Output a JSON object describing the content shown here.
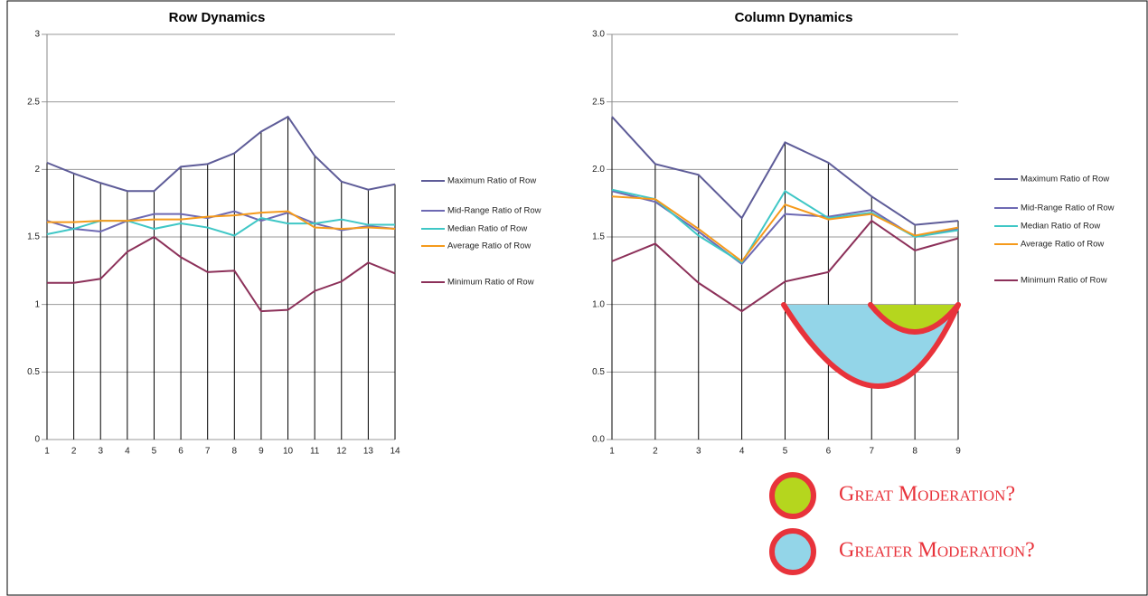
{
  "chart_data": [
    {
      "type": "line",
      "title": "Row Dynamics",
      "x": [
        1,
        2,
        3,
        4,
        5,
        6,
        7,
        8,
        9,
        10,
        11,
        12,
        13,
        14
      ],
      "xlim": [
        1,
        14
      ],
      "ylim": [
        0,
        3
      ],
      "yticks": [
        0,
        0.5,
        1,
        1.5,
        2,
        2.5,
        3
      ],
      "grid": true,
      "drop_lines": true,
      "series": [
        {
          "name": "Maximum Ratio of Row",
          "color": "#5e5c98",
          "values": [
            2.05,
            1.97,
            1.9,
            1.84,
            1.84,
            2.02,
            2.04,
            2.12,
            2.28,
            2.39,
            2.1,
            1.91,
            1.85,
            1.89
          ]
        },
        {
          "name": "Mid-Range Ratio of Row",
          "color": "#6d69b3",
          "values": [
            1.62,
            1.56,
            1.54,
            1.62,
            1.67,
            1.67,
            1.64,
            1.69,
            1.62,
            1.68,
            1.6,
            1.55,
            1.58,
            1.56
          ]
        },
        {
          "name": "Median Ratio of Row",
          "color": "#3fc7c6",
          "values": [
            1.52,
            1.56,
            1.62,
            1.62,
            1.56,
            1.6,
            1.57,
            1.51,
            1.64,
            1.6,
            1.6,
            1.63,
            1.59,
            1.59
          ]
        },
        {
          "name": "Average Ratio of Row",
          "color": "#f59a1b",
          "values": [
            1.61,
            1.61,
            1.62,
            1.62,
            1.63,
            1.63,
            1.65,
            1.66,
            1.68,
            1.69,
            1.57,
            1.56,
            1.57,
            1.56
          ]
        },
        {
          "name": "Minimum Ratio of Row",
          "color": "#8c3059",
          "values": [
            1.16,
            1.16,
            1.19,
            1.39,
            1.5,
            1.35,
            1.24,
            1.25,
            0.95,
            0.96,
            1.1,
            1.17,
            1.31,
            1.23
          ]
        }
      ]
    },
    {
      "type": "line",
      "title": "Column Dynamics",
      "x": [
        1,
        2,
        3,
        4,
        5,
        6,
        7,
        8,
        9
      ],
      "xlim": [
        1,
        9
      ],
      "ylim": [
        0,
        3
      ],
      "yticks": [
        {
          "value": 0,
          "label": "0.0"
        },
        0.5,
        {
          "value": 1,
          "label": "1.0"
        },
        1.5,
        {
          "value": 2,
          "label": "2.0"
        },
        2.5,
        {
          "value": 3,
          "label": "3.0"
        }
      ],
      "grid": true,
      "drop_lines": true,
      "series": [
        {
          "name": "Maximum Ratio of Row",
          "color": "#5e5c98",
          "values": [
            2.39,
            2.04,
            1.96,
            1.64,
            2.2,
            2.05,
            1.8,
            1.59,
            1.62
          ]
        },
        {
          "name": "Mid-Range Ratio of Row",
          "color": "#6d69b3",
          "values": [
            1.84,
            1.76,
            1.54,
            1.3,
            1.67,
            1.65,
            1.7,
            1.5,
            1.56
          ]
        },
        {
          "name": "Median Ratio of Row",
          "color": "#3fc7c6",
          "values": [
            1.85,
            1.78,
            1.51,
            1.31,
            1.84,
            1.64,
            1.68,
            1.5,
            1.55
          ]
        },
        {
          "name": "Average Ratio of Row",
          "color": "#f59a1b",
          "values": [
            1.8,
            1.78,
            1.56,
            1.32,
            1.74,
            1.63,
            1.67,
            1.51,
            1.57
          ]
        },
        {
          "name": "Minimum Ratio of Row",
          "color": "#8c3059",
          "values": [
            1.32,
            1.45,
            1.16,
            0.95,
            1.17,
            1.24,
            1.62,
            1.4,
            1.49
          ]
        }
      ]
    }
  ],
  "annotations": [
    {
      "text": "Great Moderation?",
      "color": "#b5d61e"
    },
    {
      "text": "Greater Moderation?",
      "color": "#93d5e8"
    }
  ]
}
